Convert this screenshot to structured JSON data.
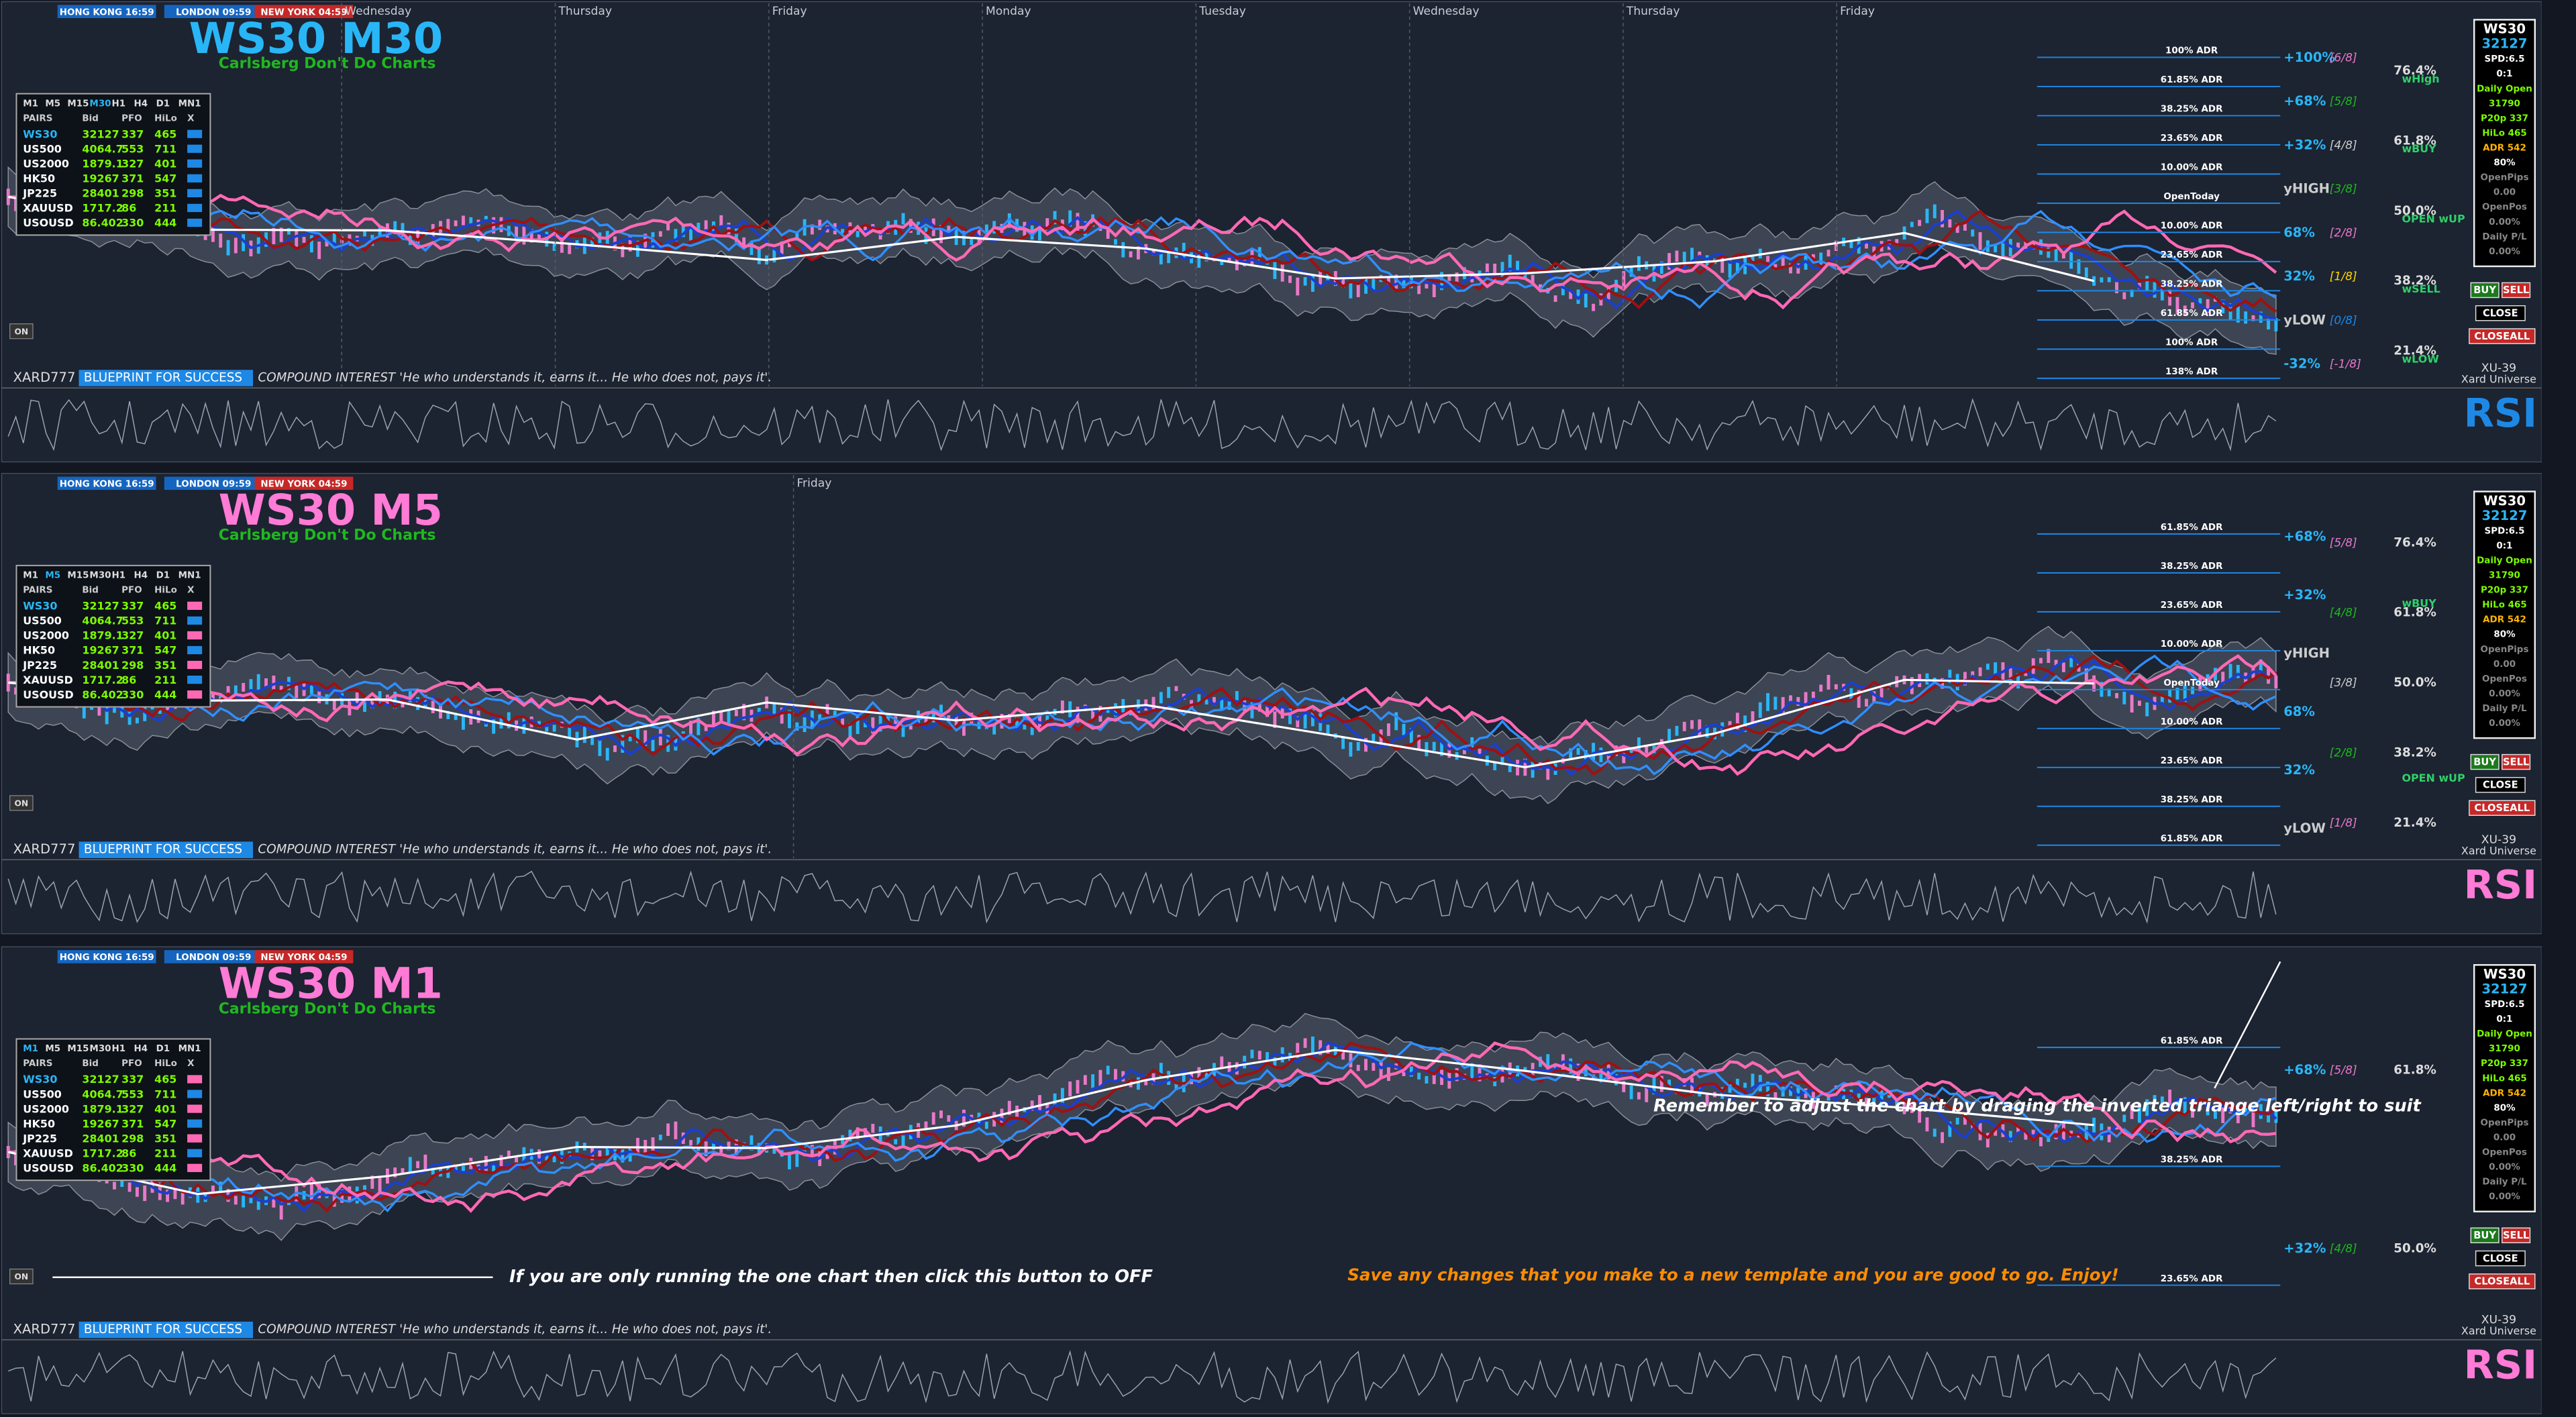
{
  "panels": [
    {
      "title": "WS30 M30",
      "subtitle": "Carlsberg Don't Do Charts",
      "sessions": [
        "HONG KONG 16:59",
        "LONDON 09:59",
        "NEW YORK 04:59"
      ],
      "days": [
        "Wednesday",
        "Thursday",
        "Friday",
        "Monday",
        "Tuesday",
        "Wednesday",
        "Thursday",
        "Friday"
      ],
      "timeframes": [
        "M1",
        "M5",
        "M15",
        "M30",
        "H1",
        "H4",
        "D1",
        "MN1"
      ],
      "table_header": [
        "PAIRS",
        "Bid",
        "PFO",
        "HiLo",
        "X"
      ],
      "table_rows": [
        [
          "WS30",
          "32127",
          "337",
          "465"
        ],
        [
          "US500",
          "4064.7",
          "553",
          "711"
        ],
        [
          "US2000",
          "1879.1",
          "327",
          "401"
        ],
        [
          "HK50",
          "19267",
          "371",
          "547"
        ],
        [
          "JP225",
          "28401",
          "298",
          "351"
        ],
        [
          "XAUUSD",
          "1717.2",
          "86",
          "211"
        ],
        [
          "USOUSD",
          "86.402",
          "330",
          "444"
        ]
      ],
      "adr_levels": [
        "100% ADR",
        "61.85% ADR",
        "38.25% ADR",
        "23.65% ADR",
        "10.00% ADR",
        "OpenToday",
        "10.00% ADR",
        "23.65% ADR",
        "38.25% ADR",
        "61.85% ADR",
        "100% ADR",
        "138% ADR"
      ],
      "pct_levels": [
        "+100%",
        "+68%",
        "+32%",
        "yHIGH",
        "68%",
        "32%",
        "yLOW",
        "-32%"
      ],
      "octaves": [
        "[6/8]",
        "[5/8]",
        "[4/8]",
        "[3/8]",
        "[2/8]",
        "[1/8]",
        "[0/8]",
        "[-1/8]"
      ],
      "fibs": [
        "76.4%",
        "61.8%",
        "50.0%",
        "38.2%",
        "21.4%"
      ],
      "weekly": [
        "wHigh",
        "wBUY",
        "OPEN wUP",
        "wSELL",
        "wLOW"
      ],
      "info": [
        "WS30",
        "32127",
        "SPD:6.5",
        "0:1",
        "Daily Open",
        "31790",
        "P20p 337",
        "HiLo 465",
        "ADR 542",
        "80%",
        "OpenPips",
        "0.00",
        "OpenPos",
        "0.00%",
        "Daily P/L",
        "0.00%"
      ],
      "buttons": [
        "BUY",
        "SELL",
        "CLOSE",
        "CLOSEALL"
      ],
      "on_button": "ON",
      "footer": "XARD777",
      "blueprint": "BLUEPRINT FOR SUCCESS",
      "quote": "COMPOUND INTEREST 'He who understands it, earns it... He who does not, pays it'.",
      "brand": [
        "XU-39",
        "Xard Universe"
      ],
      "rsi": "RSI"
    },
    {
      "title": "WS30 M5",
      "subtitle": "Carlsberg Don't Do Charts",
      "sessions": [
        "HONG KONG 16:59",
        "LONDON 09:59",
        "NEW YORK 04:59"
      ],
      "days": [
        "Friday"
      ],
      "timeframes": [
        "M1",
        "M5",
        "M15",
        "M30",
        "H1",
        "H4",
        "D1",
        "MN1"
      ],
      "table_header": [
        "PAIRS",
        "Bid",
        "PFO",
        "HiLo",
        "X"
      ],
      "table_rows": [
        [
          "WS30",
          "32127",
          "337",
          "465"
        ],
        [
          "US500",
          "4064.7",
          "553",
          "711"
        ],
        [
          "US2000",
          "1879.1",
          "327",
          "401"
        ],
        [
          "HK50",
          "19267",
          "371",
          "547"
        ],
        [
          "JP225",
          "28401",
          "298",
          "351"
        ],
        [
          "XAUUSD",
          "1717.2",
          "86",
          "211"
        ],
        [
          "USOUSD",
          "86.402",
          "330",
          "444"
        ]
      ],
      "adr_levels": [
        "61.85% ADR",
        "38.25% ADR",
        "23.65% ADR",
        "10.00% ADR",
        "OpenToday",
        "10.00% ADR",
        "23.65% ADR",
        "38.25% ADR",
        "61.85% ADR"
      ],
      "pct_levels": [
        "+68%",
        "+32%",
        "yHIGH",
        "68%",
        "32%",
        "yLOW"
      ],
      "octaves": [
        "[5/8]",
        "[4/8]",
        "[3/8]",
        "[2/8]",
        "[1/8]"
      ],
      "fibs": [
        "76.4%",
        "61.8%",
        "50.0%",
        "38.2%",
        "21.4%"
      ],
      "weekly": [
        "wBUY",
        "OPEN wUP"
      ],
      "info": [
        "WS30",
        "32127",
        "SPD:6.5",
        "0:1",
        "Daily Open",
        "31790",
        "P20p 337",
        "HiLo 465",
        "ADR 542",
        "80%",
        "OpenPips",
        "0.00",
        "OpenPos",
        "0.00%",
        "Daily P/L",
        "0.00%"
      ],
      "buttons": [
        "BUY",
        "SELL",
        "CLOSE",
        "CLOSEALL"
      ],
      "on_button": "ON",
      "footer": "XARD777",
      "blueprint": "BLUEPRINT FOR SUCCESS",
      "quote": "COMPOUND INTEREST 'He who understands it, earns it... He who does not, pays it'.",
      "brand": [
        "XU-39",
        "Xard Universe"
      ],
      "rsi": "RSI"
    },
    {
      "title": "WS30 M1",
      "subtitle": "Carlsberg Don't Do Charts",
      "sessions": [
        "HONG KONG 16:59",
        "LONDON 09:59",
        "NEW YORK 04:59"
      ],
      "days": [],
      "timeframes": [
        "M1",
        "M5",
        "M15",
        "M30",
        "H1",
        "H4",
        "D1",
        "MN1"
      ],
      "table_header": [
        "PAIRS",
        "Bid",
        "PFO",
        "HiLo",
        "X"
      ],
      "table_rows": [
        [
          "WS30",
          "32127",
          "337",
          "465"
        ],
        [
          "US500",
          "4064.7",
          "553",
          "711"
        ],
        [
          "US2000",
          "1879.1",
          "327",
          "401"
        ],
        [
          "HK50",
          "19267",
          "371",
          "547"
        ],
        [
          "JP225",
          "28401",
          "298",
          "351"
        ],
        [
          "XAUUSD",
          "1717.2",
          "86",
          "211"
        ],
        [
          "USOUSD",
          "86.402",
          "330",
          "444"
        ]
      ],
      "adr_levels": [
        "61.85% ADR",
        "38.25% ADR",
        "23.65% ADR"
      ],
      "pct_levels": [
        "+68%",
        "+32%"
      ],
      "octaves": [
        "[5/8]",
        "[4/8]"
      ],
      "fibs": [
        "61.8%",
        "50.0%"
      ],
      "weekly": [],
      "info": [
        "WS30",
        "32127",
        "SPD:6.5",
        "0:1",
        "Daily Open",
        "31790",
        "P20p 337",
        "HiLo 465",
        "ADR 542",
        "80%",
        "OpenPips",
        "0.00",
        "OpenPos",
        "0.00%",
        "Daily P/L",
        "0.00%"
      ],
      "buttons": [
        "BUY",
        "SELL",
        "CLOSE",
        "CLOSEALL"
      ],
      "on_button": "ON",
      "footer": "XARD777",
      "blueprint": "BLUEPRINT FOR SUCCESS",
      "quote": "COMPOUND INTEREST 'He who understands it, earns it... He who does not, pays it'.",
      "brand": [
        "XU-39",
        "Xard Universe"
      ],
      "rsi": "RSI"
    }
  ],
  "annotations": [
    "Remember to adjust the chart by draging the inverted triange left/right to suit",
    "If you are only running the one chart then click this button to OFF",
    "Save any changes that you make to a new template and you are good to go. Enjoy!"
  ]
}
